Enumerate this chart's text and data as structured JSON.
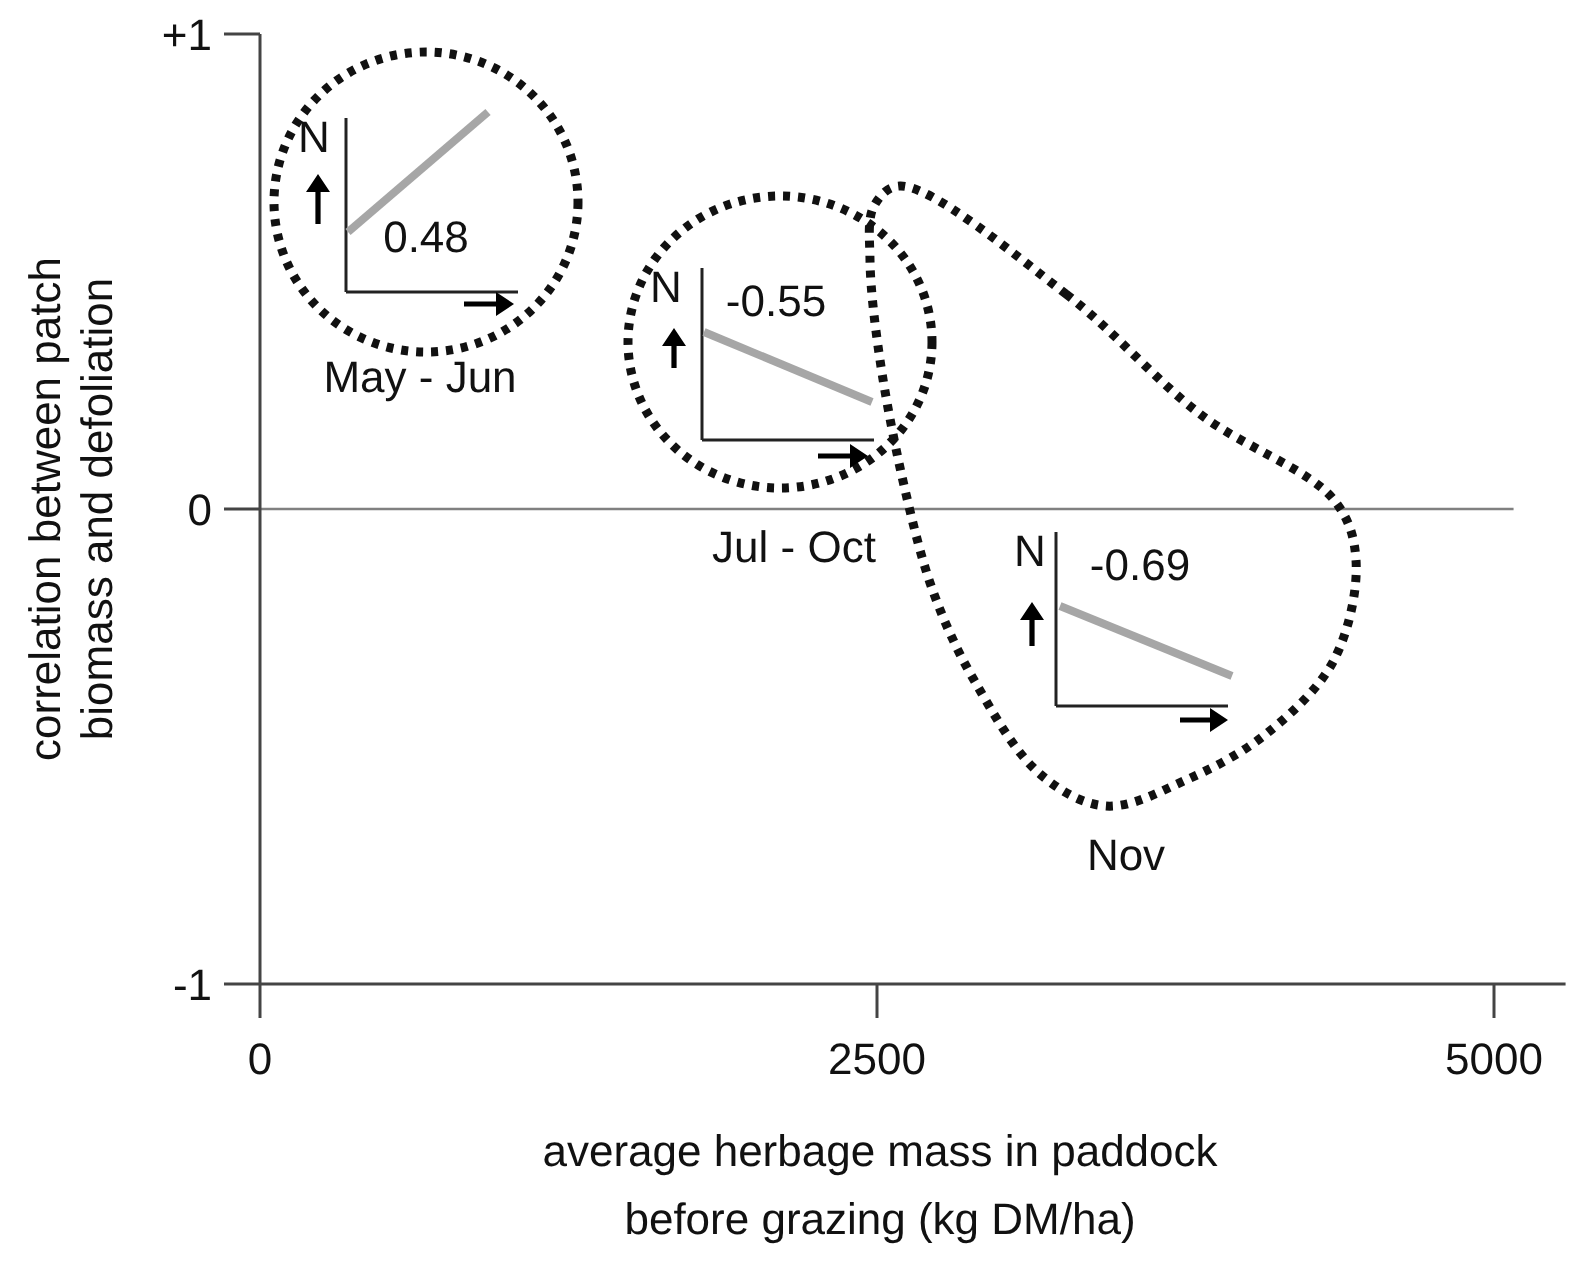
{
  "chart_data": {
    "type": "line",
    "xlabel": "average herbage mass in paddock\nbefore grazing (kg DM/ha)",
    "ylabel": "correlation between patch\nbiomass and defoliation",
    "xlim": [
      0,
      5290
    ],
    "xticks": [
      0,
      2500,
      5000
    ],
    "ylim": [
      -1,
      1
    ],
    "yticks": [
      {
        "value": -1,
        "label": "-1"
      },
      0,
      {
        "value": 1,
        "label": "+1"
      }
    ],
    "ref_lines": [
      {
        "axis": "y",
        "value": 0,
        "color": "#808080"
      }
    ],
    "annotations": [
      "May - Jun",
      "Jul - Oct",
      "Nov",
      "N",
      "0.48",
      "N",
      "-0.55",
      "N",
      "-0.69"
    ]
  }
}
